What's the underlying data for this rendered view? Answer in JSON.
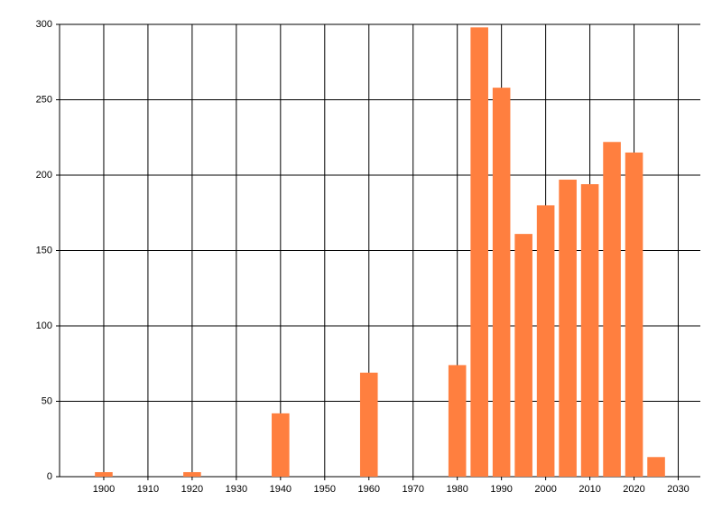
{
  "chart_data": {
    "type": "bar",
    "x": [
      1900,
      1920,
      1940,
      1960,
      1980,
      1985,
      1990,
      1995,
      2000,
      2005,
      2010,
      2015,
      2020,
      2025
    ],
    "values": [
      3,
      3,
      42,
      69,
      74,
      298,
      258,
      161,
      180,
      197,
      194,
      222,
      215,
      13
    ],
    "color": "#ff7f3f",
    "xlim": [
      1890,
      2035
    ],
    "xticks": [
      1900,
      1910,
      1920,
      1930,
      1940,
      1950,
      1960,
      1970,
      1980,
      1990,
      2000,
      2010,
      2020,
      2030
    ],
    "ylim": [
      0,
      300
    ],
    "yticks": [
      0,
      50,
      100,
      150,
      200,
      250,
      300
    ],
    "grid": true
  }
}
